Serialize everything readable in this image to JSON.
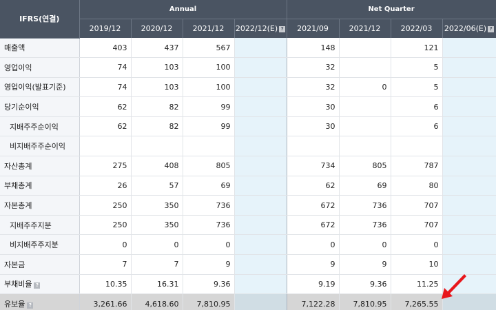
{
  "header": {
    "corner": "IFRS(연결)",
    "annual_label": "Annual",
    "quarter_label": "Net Quarter",
    "help_glyph": "?"
  },
  "columns": [
    {
      "label": "2019/12",
      "estimate": false
    },
    {
      "label": "2020/12",
      "estimate": false
    },
    {
      "label": "2021/12",
      "estimate": false
    },
    {
      "label": "2022/12(E)",
      "estimate": true
    },
    {
      "label": "2021/09",
      "estimate": false
    },
    {
      "label": "2021/12",
      "estimate": false
    },
    {
      "label": "2022/03",
      "estimate": false
    },
    {
      "label": "2022/06(E)",
      "estimate": true
    }
  ],
  "rows": [
    {
      "label": "매출액",
      "sub": false,
      "help": false,
      "values": [
        "403",
        "437",
        "567",
        "",
        "148",
        "",
        "121",
        ""
      ]
    },
    {
      "label": "영업이익",
      "sub": false,
      "help": false,
      "values": [
        "74",
        "103",
        "100",
        "",
        "32",
        "",
        "5",
        ""
      ]
    },
    {
      "label": "영업이익(발표기준)",
      "sub": false,
      "help": false,
      "values": [
        "74",
        "103",
        "100",
        "",
        "32",
        "0",
        "5",
        ""
      ]
    },
    {
      "label": "당기순이익",
      "sub": false,
      "help": false,
      "values": [
        "62",
        "82",
        "99",
        "",
        "30",
        "",
        "6",
        ""
      ]
    },
    {
      "label": "지배주주순이익",
      "sub": true,
      "help": false,
      "values": [
        "62",
        "82",
        "99",
        "",
        "30",
        "",
        "6",
        ""
      ]
    },
    {
      "label": "비지배주주순이익",
      "sub": true,
      "help": false,
      "values": [
        "",
        "",
        "",
        "",
        "",
        "",
        "",
        ""
      ]
    },
    {
      "label": "자산총계",
      "sub": false,
      "help": false,
      "values": [
        "275",
        "408",
        "805",
        "",
        "734",
        "805",
        "787",
        ""
      ]
    },
    {
      "label": "부채총계",
      "sub": false,
      "help": false,
      "values": [
        "26",
        "57",
        "69",
        "",
        "62",
        "69",
        "80",
        ""
      ]
    },
    {
      "label": "자본총계",
      "sub": false,
      "help": false,
      "values": [
        "250",
        "350",
        "736",
        "",
        "672",
        "736",
        "707",
        ""
      ]
    },
    {
      "label": "지배주주지분",
      "sub": true,
      "help": false,
      "values": [
        "250",
        "350",
        "736",
        "",
        "672",
        "736",
        "707",
        ""
      ]
    },
    {
      "label": "비지배주주지분",
      "sub": true,
      "help": false,
      "values": [
        "0",
        "0",
        "0",
        "",
        "0",
        "0",
        "0",
        ""
      ]
    },
    {
      "label": "자본금",
      "sub": false,
      "help": false,
      "values": [
        "7",
        "7",
        "9",
        "",
        "9",
        "9",
        "10",
        ""
      ]
    },
    {
      "label": "부채비율",
      "sub": false,
      "help": true,
      "values": [
        "10.35",
        "16.31",
        "9.36",
        "",
        "9.19",
        "9.36",
        "11.25",
        ""
      ]
    },
    {
      "label": "유보율",
      "sub": false,
      "help": true,
      "values": [
        "3,261.66",
        "4,618.60",
        "7,810.95",
        "",
        "7,122.28",
        "7,810.95",
        "7,265.55",
        ""
      ]
    }
  ],
  "colors": {
    "header_bg": "#4a5462",
    "estimate_bg": "#e6f3fa",
    "arrow": "#e8161b"
  },
  "icons": {
    "help": "question-mark-icon",
    "annotation": "red-arrow-icon"
  }
}
